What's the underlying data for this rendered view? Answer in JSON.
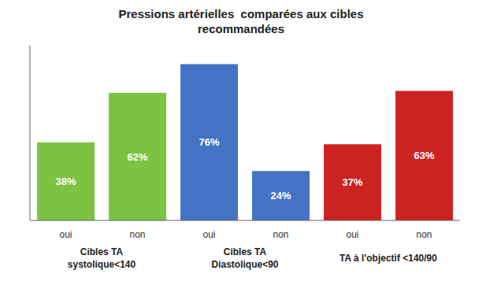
{
  "chart_data": {
    "type": "bar",
    "title": "Pressions artérielles  comparées aux cibles\nrecommandées",
    "categories": [
      "oui",
      "non",
      "oui",
      "non",
      "oui",
      "non"
    ],
    "values": [
      38,
      62,
      76,
      24,
      37,
      63
    ],
    "value_labels": [
      "38%",
      "62%",
      "76%",
      "24%",
      "37%",
      "63%"
    ],
    "colors": [
      "#7DC242",
      "#7DC242",
      "#4472C4",
      "#4472C4",
      "#CC2222",
      "#CC2222"
    ],
    "data_labels": true,
    "ylim": [
      0,
      85
    ],
    "tick_labels": "x",
    "annotations": [
      "Cibles TA\nsystolique<140",
      "Cibles TA\nDiastolique<90",
      "TA à l'objectif <140/90"
    ]
  }
}
